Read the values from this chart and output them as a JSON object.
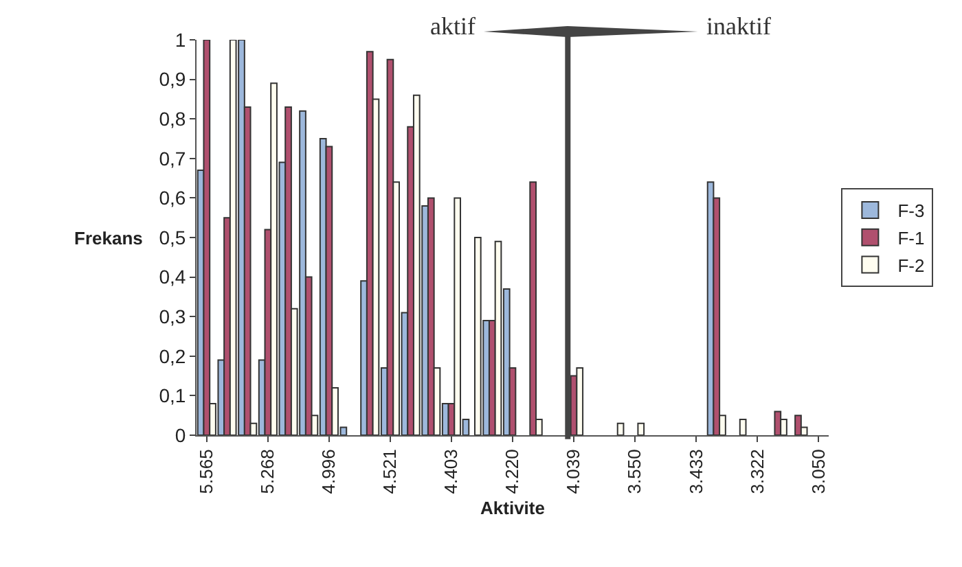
{
  "chart_data": {
    "type": "bar",
    "xlabel": "Aktivite",
    "ylabel": "Frekans",
    "categories": [
      "5.565",
      null,
      null,
      "5.268",
      null,
      null,
      "4.996",
      null,
      null,
      "4.521",
      null,
      null,
      "4.403",
      null,
      null,
      "4.220",
      null,
      null,
      "4.039",
      null,
      null,
      "3.550",
      null,
      null,
      "3.433",
      null,
      null,
      "3.322",
      null,
      null,
      "3.050"
    ],
    "series": [
      {
        "name": "F-3",
        "color": "#9db8dc",
        "values": [
          0.67,
          0.19,
          1,
          0.19,
          0.69,
          0.82,
          0.75,
          0.02,
          0.39,
          0.17,
          0.31,
          0.58,
          0.08,
          0.04,
          0.29,
          0.37,
          0,
          0,
          0,
          0,
          0,
          0,
          0,
          0,
          0,
          0.64,
          0,
          0,
          0,
          0,
          0
        ]
      },
      {
        "name": "F-1",
        "color": "#b0506e",
        "values": [
          1,
          0.55,
          0.83,
          0.52,
          0.83,
          0.4,
          0.73,
          0,
          0.97,
          0.95,
          0.78,
          0.6,
          0.08,
          0,
          0.29,
          0.17,
          0.64,
          0,
          0.15,
          0,
          0,
          0,
          0,
          0,
          0,
          0.6,
          0,
          0,
          0.06,
          0.05,
          0
        ]
      },
      {
        "name": "F-2",
        "color": "#fffdf0",
        "values": [
          0.08,
          1,
          0.03,
          0.89,
          0.32,
          0.05,
          0.12,
          0,
          0.85,
          0.64,
          0.86,
          0.17,
          0.6,
          0.5,
          0.49,
          0,
          0.04,
          0,
          0.17,
          0,
          0.03,
          0.03,
          0,
          0,
          0,
          0.05,
          0.04,
          0,
          0.04,
          0.02,
          0
        ]
      }
    ],
    "ylim": [
      0,
      1
    ],
    "yticks": [
      0,
      {
        "value": 0.1,
        "label": "0,1"
      },
      {
        "value": 0.2,
        "label": "0,2"
      },
      {
        "value": 0.3,
        "label": "0,3"
      },
      {
        "value": 0.4,
        "label": "0,4"
      },
      {
        "value": 0.5,
        "label": "0,5"
      },
      {
        "value": 0.6,
        "label": "0,6"
      },
      {
        "value": 0.7,
        "label": "0,7"
      },
      {
        "value": 0.8,
        "label": "0,8"
      },
      {
        "value": 0.9,
        "label": "0,9"
      },
      1
    ],
    "grid": false,
    "legend": "right",
    "ref_lines": [
      {
        "axis": "x",
        "value": "4.039",
        "color": "#444444"
      }
    ],
    "annotations": [
      "aktif",
      "inaktif"
    ]
  }
}
